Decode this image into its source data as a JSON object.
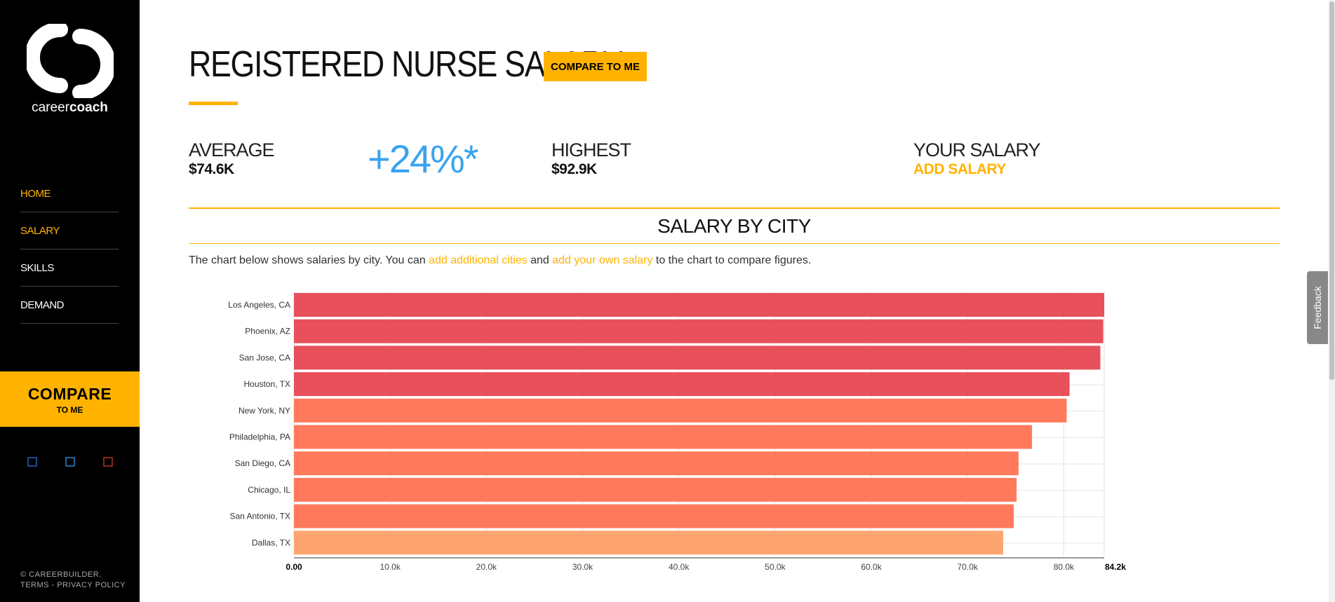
{
  "sidebar": {
    "brand_light": "career",
    "brand_bold": "coach",
    "nav": [
      "HOME",
      "SALARY",
      "SKILLS",
      "DEMAND"
    ],
    "compare_big": "COMPARE",
    "compare_small": "TO ME",
    "social_icons": [
      "facebook-icon",
      "twitter-icon",
      "google-plus-icon"
    ],
    "footer_copyright": "© CAREERBUILDER.",
    "footer_terms": "TERMS",
    "footer_sep": " - ",
    "footer_privacy": "PRIVACY POLICY"
  },
  "header": {
    "title": "REGISTERED NURSE SALARY",
    "compare_button": "COMPARE TO ME"
  },
  "stats": {
    "average_label": "AVERAGE",
    "average_value": "$74.6K",
    "percent": "+24%*",
    "highest_label": "HIGHEST",
    "highest_value": "$92.9K",
    "your_label": "YOUR SALARY",
    "your_action": "ADD SALARY"
  },
  "section": {
    "title": "SALARY BY CITY",
    "desc_1": "The chart below shows salaries by city. You can ",
    "desc_link1": "add additional cities",
    "desc_2": " and ",
    "desc_link2": "add your own salary",
    "desc_3": " to the chart to compare figures."
  },
  "feedback": "Feedback",
  "colors": {
    "accent": "#ffb300",
    "blue": "#3aa3f0",
    "bar_red": "#e8505b",
    "bar_orange": "#ff7a5c",
    "bar_peach": "#fea56f"
  },
  "chart_data": {
    "type": "bar",
    "orientation": "horizontal",
    "categories": [
      "Los Angeles, CA",
      "Phoenix, AZ",
      "San Jose, CA",
      "Houston, TX",
      "New York, NY",
      "Philadelphia, PA",
      "San Diego, CA",
      "Chicago, IL",
      "San Antonio, TX",
      "Dallas, TX"
    ],
    "values": [
      84.2,
      84.1,
      83.8,
      80.6,
      80.3,
      76.7,
      75.3,
      75.1,
      74.8,
      73.7
    ],
    "bar_colors": [
      "#e8505b",
      "#e8505b",
      "#e8505b",
      "#e8505b",
      "#ff7a5c",
      "#ff7a5c",
      "#ff7a5c",
      "#ff7a5c",
      "#ff7a5c",
      "#fea56f"
    ],
    "x_ticks": [
      "0.00",
      "10.0k",
      "20.0k",
      "30.0k",
      "40.0k",
      "50.0k",
      "60.0k",
      "70.0k",
      "80.0k",
      "84.2k"
    ],
    "x_tick_values": [
      0,
      10,
      20,
      30,
      40,
      50,
      60,
      70,
      80,
      84.2
    ],
    "xlim": [
      0,
      84.2
    ],
    "grid": true
  }
}
